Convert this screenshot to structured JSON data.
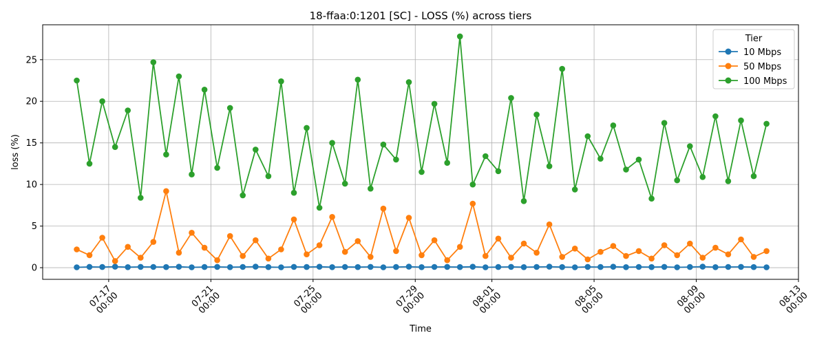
{
  "chart_data": {
    "type": "line",
    "title": "18-ffaa:0:1201 [SC] - LOSS (%) across tiers",
    "xlabel": "Time",
    "ylabel": "loss (%)",
    "x_range": [
      "2025-07-14T10:00",
      "2025-08-13T00:00"
    ],
    "ylim": [
      -1.4,
      29.2
    ],
    "grid": true,
    "legend": {
      "title": "Tier",
      "placement": "top-right"
    },
    "x_ticks": [
      {
        "date": "2025-07-17T00:00",
        "line1": "07-17",
        "line2": "00:00"
      },
      {
        "date": "2025-07-21T00:00",
        "line1": "07-21",
        "line2": "00:00"
      },
      {
        "date": "2025-07-25T00:00",
        "line1": "07-25",
        "line2": "00:00"
      },
      {
        "date": "2025-07-29T00:00",
        "line1": "07-29",
        "line2": "00:00"
      },
      {
        "date": "2025-08-01T00:00",
        "line1": "08-01",
        "line2": "00:00"
      },
      {
        "date": "2025-08-05T00:00",
        "line1": "08-05",
        "line2": "00:00"
      },
      {
        "date": "2025-08-09T00:00",
        "line1": "08-09",
        "line2": "00:00"
      },
      {
        "date": "2025-08-13T00:00",
        "line1": "08-13",
        "line2": "00:00"
      }
    ],
    "y_ticks": [
      {
        "value": 0,
        "label": "0"
      },
      {
        "value": 5,
        "label": "5"
      },
      {
        "value": 10,
        "label": "10"
      },
      {
        "value": 15,
        "label": "15"
      },
      {
        "value": 20,
        "label": "20"
      },
      {
        "value": 25,
        "label": "25"
      }
    ],
    "x": [
      "2025-07-15T18:00",
      "2025-07-16T06:00",
      "2025-07-16T18:00",
      "2025-07-17T06:00",
      "2025-07-17T18:00",
      "2025-07-18T06:00",
      "2025-07-18T18:00",
      "2025-07-19T06:00",
      "2025-07-19T18:00",
      "2025-07-20T06:00",
      "2025-07-20T18:00",
      "2025-07-21T06:00",
      "2025-07-21T18:00",
      "2025-07-22T06:00",
      "2025-07-22T18:00",
      "2025-07-23T06:00",
      "2025-07-23T18:00",
      "2025-07-24T06:00",
      "2025-07-24T18:00",
      "2025-07-25T06:00",
      "2025-07-25T18:00",
      "2025-07-26T06:00",
      "2025-07-26T18:00",
      "2025-07-27T06:00",
      "2025-07-27T18:00",
      "2025-07-28T06:00",
      "2025-07-28T18:00",
      "2025-07-29T06:00",
      "2025-07-29T18:00",
      "2025-07-30T06:00",
      "2025-07-30T18:00",
      "2025-07-31T06:00",
      "2025-07-31T18:00",
      "2025-08-01T06:00",
      "2025-08-01T18:00",
      "2025-08-02T06:00",
      "2025-08-02T18:00",
      "2025-08-03T06:00",
      "2025-08-03T18:00",
      "2025-08-04T06:00",
      "2025-08-04T18:00",
      "2025-08-05T06:00",
      "2025-08-05T18:00",
      "2025-08-06T06:00",
      "2025-08-06T18:00",
      "2025-08-07T06:00",
      "2025-08-07T18:00",
      "2025-08-08T06:00",
      "2025-08-08T18:00",
      "2025-08-09T06:00",
      "2025-08-09T18:00",
      "2025-08-10T06:00",
      "2025-08-10T18:00",
      "2025-08-11T06:00",
      "2025-08-11T18:00"
    ],
    "series": [
      {
        "name": "10 Mbps",
        "color": "#1f77b4",
        "values": [
          0.05,
          0.1,
          0.08,
          0.12,
          0.06,
          0.1,
          0.09,
          0.07,
          0.11,
          0.05,
          0.08,
          0.1,
          0.06,
          0.09,
          0.12,
          0.07,
          0.05,
          0.1,
          0.08,
          0.11,
          0.06,
          0.09,
          0.07,
          0.1,
          0.05,
          0.08,
          0.12,
          0.06,
          0.09,
          0.1,
          0.07,
          0.11,
          0.05,
          0.08,
          0.1,
          0.06,
          0.09,
          0.12,
          0.07,
          0.05,
          0.1,
          0.08,
          0.11,
          0.06,
          0.09,
          0.07,
          0.1,
          0.05,
          0.08,
          0.12,
          0.06,
          0.09,
          0.1,
          0.07,
          0.05
        ]
      },
      {
        "name": "50 Mbps",
        "color": "#ff7f0e",
        "values": [
          2.2,
          1.5,
          3.6,
          0.8,
          2.5,
          1.2,
          3.1,
          9.2,
          1.8,
          4.2,
          2.4,
          0.9,
          3.8,
          1.4,
          3.3,
          1.1,
          2.2,
          5.8,
          1.6,
          2.7,
          6.1,
          1.9,
          3.2,
          1.3,
          7.1,
          2.0,
          6.0,
          1.5,
          3.3,
          0.9,
          2.5,
          7.7,
          1.4,
          3.5,
          1.2,
          2.9,
          1.8,
          5.2,
          1.3,
          2.3,
          1.0,
          1.9,
          2.6,
          1.4,
          2.0,
          1.1,
          2.7,
          1.5,
          2.9,
          1.2,
          2.4,
          1.6,
          3.4,
          1.3,
          2.0
        ]
      },
      {
        "name": "100 Mbps",
        "color": "#2ca02c",
        "values": [
          22.5,
          12.5,
          20.0,
          14.5,
          18.9,
          8.4,
          24.7,
          13.6,
          23.0,
          11.2,
          21.4,
          12.0,
          19.2,
          8.7,
          14.2,
          11.0,
          22.4,
          9.0,
          16.8,
          7.2,
          15.0,
          10.1,
          22.6,
          9.5,
          14.8,
          13.0,
          22.3,
          11.5,
          19.7,
          12.6,
          27.8,
          10.0,
          13.4,
          11.6,
          20.4,
          8.0,
          18.4,
          12.2,
          23.9,
          9.4,
          15.8,
          13.1,
          17.1,
          11.8,
          13.0,
          8.3,
          17.4,
          10.5,
          14.6,
          10.9,
          18.2,
          10.4,
          17.7,
          11.0,
          17.3
        ]
      }
    ]
  }
}
